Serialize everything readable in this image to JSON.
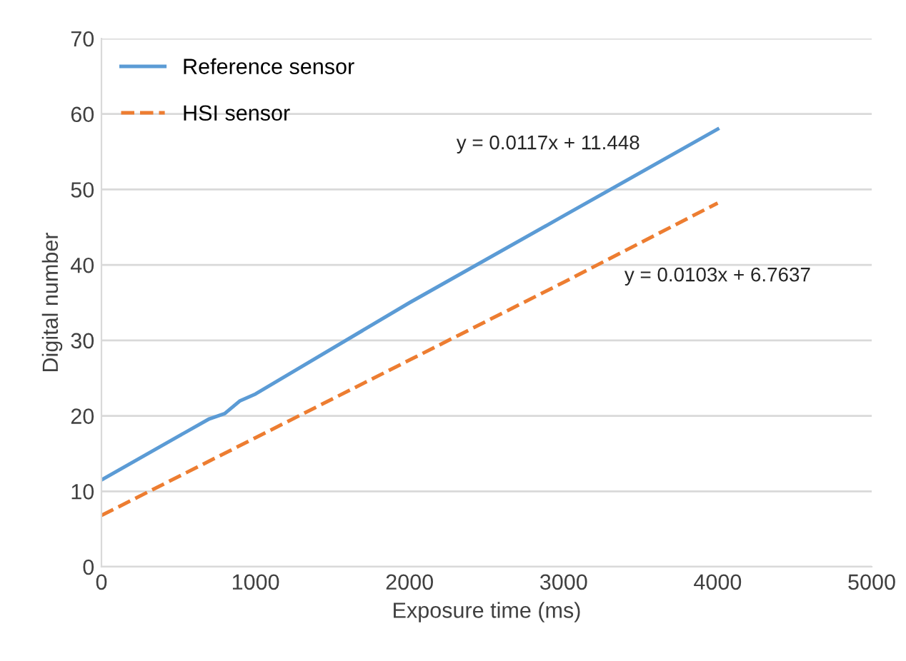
{
  "chart_data": {
    "type": "line",
    "xlabel": "Exposure time (ms)",
    "ylabel": "Digital number",
    "xlim": [
      0,
      5000
    ],
    "xticks": [
      0,
      1000,
      2000,
      3000,
      4000,
      5000
    ],
    "ylim": [
      0,
      70
    ],
    "yticks": [
      0,
      10,
      20,
      30,
      40,
      50,
      60,
      70
    ],
    "grid": "y",
    "legend": "top left",
    "series": [
      {
        "name": "Reference sensor",
        "color": "#5b9bd5",
        "line_style": "solid",
        "x": [
          0,
          500,
          700,
          800,
          900,
          1000,
          2000,
          3000,
          4000
        ],
        "values": [
          11.5,
          17.3,
          19.6,
          20.3,
          22.0,
          22.9,
          35.0,
          46.5,
          58.0
        ]
      },
      {
        "name": "HSI sensor",
        "color": "#ed7d31",
        "line_style": "dashed",
        "x": [
          0,
          1000,
          2000,
          3000,
          4000
        ],
        "values": [
          6.8,
          17.1,
          27.4,
          37.7,
          48.2
        ]
      }
    ],
    "annotations": [
      "y = 0.0117x + 11.448",
      "y = 0.0103x + 6.7637"
    ]
  }
}
